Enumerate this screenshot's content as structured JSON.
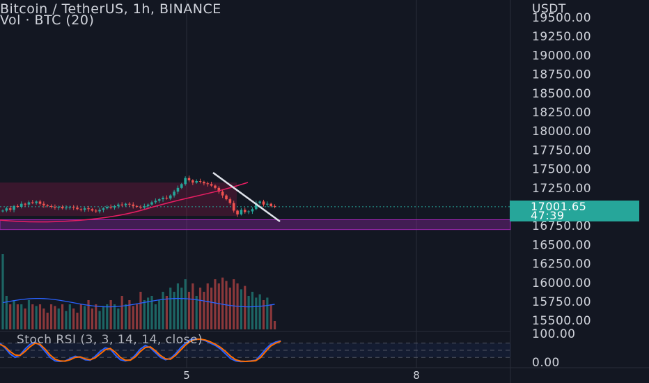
{
  "header": {
    "title": "Bitcoin / TetherUS, 1h, BINANCE",
    "subtitle": "Vol · BTC (20)"
  },
  "indicator": {
    "label": "Stoch RSI (3, 3, 14, 14, close)",
    "upper_label": "100.00",
    "lower_label": "0.00"
  },
  "price_tag": {
    "price": "17001.65",
    "countdown": "47:39",
    "color": "#26a69a"
  },
  "colors": {
    "background": "#131722",
    "up": "#26a69a",
    "down": "#ef5350",
    "zone": "#9c27b0",
    "pattern": "#e91e63",
    "trendline": "#e0e3eb",
    "volume_ma": "#2962ff",
    "stoch_k": "#2962ff",
    "stoch_d": "#ff6d00"
  },
  "chart_data": [
    {
      "type": "candlestick",
      "symbol": "Bitcoin / TetherUS",
      "interval": "1h",
      "exchange": "BINANCE",
      "y_unit": "USDT",
      "y_ticks": [
        19500,
        19250,
        19000,
        18750,
        18500,
        18250,
        18000,
        17750,
        17500,
        17250,
        17000,
        16750,
        16500,
        16250,
        16000,
        15750,
        15500
      ],
      "y_tick_labels": [
        "19500.00",
        "19250.00",
        "19000.00",
        "18750.00",
        "18500.00",
        "18250.00",
        "18000.00",
        "17750.00",
        "17500.00",
        "17250.00",
        "16750.00",
        "16500.00",
        "16250.00",
        "16000.00",
        "15750.00",
        "15500.00"
      ],
      "ylim": [
        15400,
        19550
      ],
      "x_ticks": [
        "5",
        "8"
      ],
      "last_price": 17001.65,
      "ohlc_closes": [
        16950,
        16980,
        16960,
        17010,
        17000,
        17040,
        17030,
        17060,
        17050,
        17070,
        17040,
        17020,
        17010,
        17000,
        16990,
        17000,
        16980,
        16990,
        17000,
        16990,
        16970,
        16960,
        16980,
        16970,
        16950,
        16940,
        16960,
        16980,
        17000,
        16990,
        17010,
        17030,
        17020,
        17040,
        17030,
        17010,
        17000,
        16990,
        17010,
        17030,
        17060,
        17080,
        17100,
        17120,
        17110,
        17150,
        17200,
        17250,
        17300,
        17380,
        17350,
        17320,
        17340,
        17330,
        17310,
        17300,
        17280,
        17250,
        17200,
        17150,
        17100,
        17050,
        16950,
        16900,
        16960,
        16930,
        16940,
        16970,
        17050,
        17070,
        17030,
        17040,
        17010,
        17002
      ],
      "annotations": {
        "consolidation_zone": [
          16880,
          17320
        ],
        "support_zone": [
          16700,
          16830
        ],
        "descending_trendline": [
          [
            17480,
            16780
          ]
        ]
      }
    },
    {
      "type": "bar",
      "name": "Vol · BTC (20)",
      "values_relative": [
        0.9,
        0.4,
        0.3,
        0.35,
        0.3,
        0.3,
        0.25,
        0.35,
        0.3,
        0.28,
        0.3,
        0.25,
        0.2,
        0.3,
        0.28,
        0.25,
        0.3,
        0.22,
        0.3,
        0.25,
        0.2,
        0.3,
        0.28,
        0.35,
        0.25,
        0.3,
        0.22,
        0.28,
        0.3,
        0.35,
        0.3,
        0.25,
        0.4,
        0.3,
        0.35,
        0.28,
        0.3,
        0.45,
        0.35,
        0.38,
        0.4,
        0.3,
        0.35,
        0.45,
        0.4,
        0.5,
        0.45,
        0.55,
        0.5,
        0.6,
        0.45,
        0.55,
        0.4,
        0.5,
        0.45,
        0.55,
        0.5,
        0.6,
        0.55,
        0.62,
        0.58,
        0.5,
        0.6,
        0.55,
        0.48,
        0.52,
        0.4,
        0.45,
        0.38,
        0.42,
        0.35,
        0.38,
        0.3,
        0.1
      ]
    },
    {
      "type": "line",
      "name": "Stoch RSI (3, 3, 14, 14, close)",
      "ylim": [
        0,
        100
      ],
      "levels": [
        80,
        20
      ],
      "series": [
        {
          "values": [
            80,
            60,
            35,
            20,
            30,
            55,
            75,
            85,
            70,
            45,
            20,
            5,
            3,
            5,
            15,
            25,
            20,
            10,
            8,
            25,
            45,
            60,
            55,
            30,
            10,
            5,
            10,
            30,
            55,
            70,
            60,
            40,
            20,
            10,
            15,
            35,
            60,
            80,
            95,
            98,
            96,
            90,
            80,
            70,
            55,
            35,
            15,
            5,
            2,
            3,
            5,
            8,
            30,
            55,
            75,
            85,
            90
          ]
        },
        {
          "values": [
            75,
            65,
            45,
            30,
            28,
            45,
            65,
            80,
            75,
            55,
            30,
            12,
            5,
            4,
            10,
            20,
            22,
            14,
            10,
            18,
            35,
            52,
            58,
            42,
            20,
            8,
            8,
            22,
            45,
            62,
            64,
            48,
            28,
            14,
            12,
            28,
            50,
            72,
            88,
            96,
            97,
            93,
            85,
            75,
            62,
            45,
            25,
            10,
            4,
            3,
            4,
            6,
            20,
            45,
            68,
            80,
            88
          ]
        }
      ]
    }
  ]
}
